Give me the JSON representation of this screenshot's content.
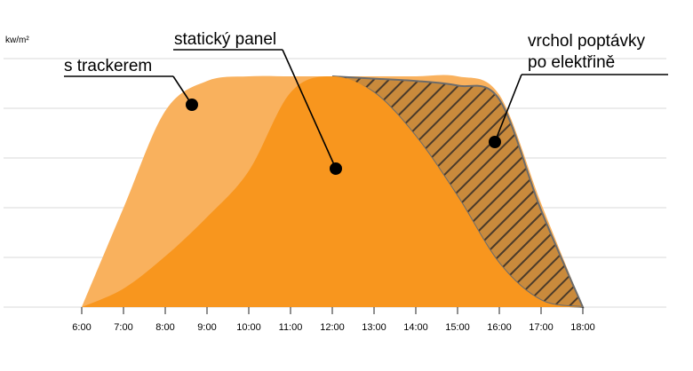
{
  "chart_data": {
    "type": "area",
    "ylabel": "kw/m²",
    "xlabel": "",
    "x": [
      "6:00",
      "7:00",
      "8:00",
      "9:00",
      "10:00",
      "11:00",
      "12:00",
      "13:00",
      "14:00",
      "15:00",
      "16:00",
      "17:00",
      "18:00"
    ],
    "ylim": [
      0,
      1
    ],
    "grid": true,
    "series": [
      {
        "name": "s trackerem",
        "color": "#f9b15d",
        "values": [
          0,
          0.43,
          0.85,
          0.98,
          1.0,
          1.0,
          1.0,
          1.0,
          1.0,
          1.0,
          0.92,
          0.45,
          0
        ]
      },
      {
        "name": "statický panel",
        "color": "#f8961e",
        "values": [
          0,
          0.08,
          0.22,
          0.39,
          0.59,
          0.93,
          1.0,
          0.93,
          0.74,
          0.48,
          0.19,
          0.03,
          0
        ]
      },
      {
        "name": "vrchol poptávky po elektřině",
        "color": "#555555",
        "pattern": "hatch",
        "values": [
          null,
          null,
          null,
          null,
          null,
          null,
          1.0,
          0.99,
          0.98,
          0.96,
          0.9,
          0.42,
          0
        ]
      }
    ],
    "annotations": [
      {
        "label": "s trackerem",
        "series": 0
      },
      {
        "label": "statický panel",
        "series": 1
      },
      {
        "label_lines": [
          "vrchol poptávky",
          "po elektřině"
        ],
        "series": 2
      }
    ]
  }
}
